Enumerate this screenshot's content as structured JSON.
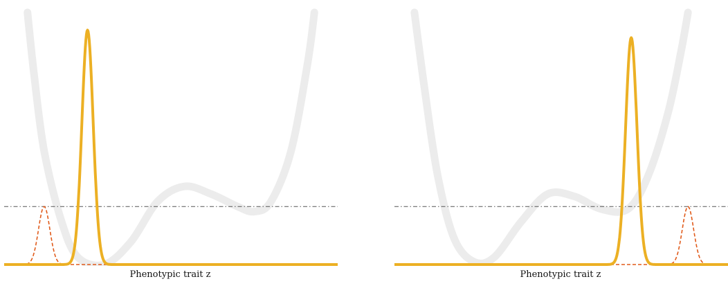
{
  "chart_data": [
    {
      "type": "line",
      "xlabel": "Phenotypic trait z",
      "xlim": [
        0,
        1
      ],
      "ylim": [
        0,
        1
      ],
      "grid": false,
      "legend": "none",
      "series": [
        {
          "role": "landscape",
          "style": "thick light grey curve",
          "color": "#ececec",
          "points": [
            [
              0.07,
              1.0
            ],
            [
              0.09,
              0.75
            ],
            [
              0.12,
              0.45
            ],
            [
              0.17,
              0.18
            ],
            [
              0.22,
              0.03
            ],
            [
              0.3,
              0.0
            ],
            [
              0.38,
              0.09
            ],
            [
              0.46,
              0.25
            ],
            [
              0.54,
              0.31
            ],
            [
              0.62,
              0.28
            ],
            [
              0.7,
              0.23
            ],
            [
              0.75,
              0.21
            ],
            [
              0.8,
              0.25
            ],
            [
              0.86,
              0.45
            ],
            [
              0.91,
              0.8
            ],
            [
              0.93,
              1.0
            ]
          ]
        },
        {
          "role": "distribution",
          "style": "solid",
          "color": "#ecb024",
          "mean": 0.25,
          "sd": 0.017,
          "peak": 0.93
        },
        {
          "role": "distribution",
          "style": "dashed",
          "color": "#e05a1a",
          "mean": 0.12,
          "sd": 0.017,
          "peak": 0.23
        },
        {
          "role": "threshold",
          "style": "dash-dot",
          "color": "#555555",
          "y": 0.23
        }
      ]
    },
    {
      "type": "line",
      "xlabel": "Phenotypic trait z",
      "xlim": [
        0,
        1
      ],
      "ylim": [
        0,
        1
      ],
      "grid": false,
      "legend": "none",
      "series": [
        {
          "role": "landscape",
          "style": "thick light grey curve",
          "color": "#ececec",
          "points": [
            [
              0.06,
              1.0
            ],
            [
              0.09,
              0.7
            ],
            [
              0.13,
              0.35
            ],
            [
              0.18,
              0.1
            ],
            [
              0.24,
              0.01
            ],
            [
              0.3,
              0.03
            ],
            [
              0.38,
              0.17
            ],
            [
              0.46,
              0.28
            ],
            [
              0.54,
              0.27
            ],
            [
              0.62,
              0.22
            ],
            [
              0.7,
              0.22
            ],
            [
              0.76,
              0.35
            ],
            [
              0.82,
              0.6
            ],
            [
              0.86,
              0.85
            ],
            [
              0.88,
              1.0
            ]
          ]
        },
        {
          "role": "distribution",
          "style": "solid",
          "color": "#ecb024",
          "mean": 0.71,
          "sd": 0.017,
          "peak": 0.9
        },
        {
          "role": "distribution",
          "style": "dashed",
          "color": "#e05a1a",
          "mean": 0.88,
          "sd": 0.017,
          "peak": 0.23
        },
        {
          "role": "threshold",
          "style": "dash-dot",
          "color": "#555555",
          "y": 0.23
        }
      ]
    }
  ]
}
